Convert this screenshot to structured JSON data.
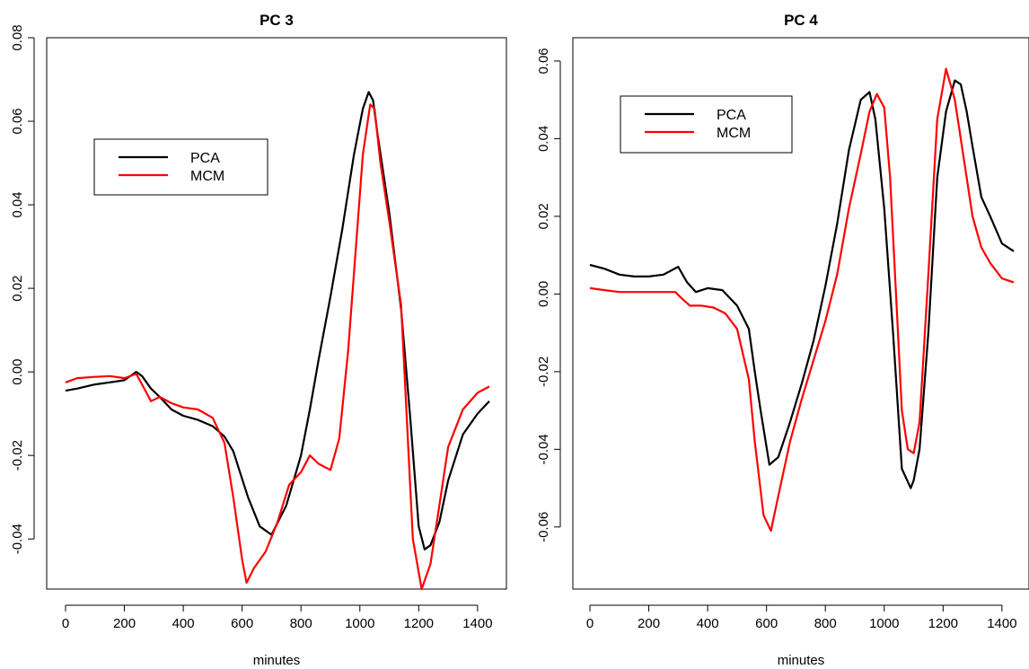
{
  "chart_data": [
    {
      "type": "line",
      "title": "PC 3",
      "xlabel": "minutes",
      "ylabel": "",
      "xlim": [
        0,
        1440
      ],
      "ylim": [
        -0.052,
        0.08
      ],
      "xticks": [
        0,
        200,
        400,
        600,
        800,
        1000,
        1200,
        1400
      ],
      "xtick_labels": [
        "0",
        "200",
        "400",
        "600",
        "800",
        "1000",
        "1200",
        "1400"
      ],
      "yticks": [
        -0.04,
        -0.02,
        0.0,
        0.02,
        0.04,
        0.06,
        0.08
      ],
      "ytick_labels": [
        "-0.04",
        "-0.02",
        "0.00",
        "0.02",
        "0.04",
        "0.06",
        "0.08"
      ],
      "legend": {
        "position": "top-left",
        "entries": [
          "PCA",
          "MCM"
        ]
      },
      "grid": false,
      "series": [
        {
          "name": "PCA",
          "color": "#000000",
          "x": [
            0,
            40,
            100,
            150,
            200,
            240,
            260,
            290,
            320,
            360,
            400,
            450,
            500,
            540,
            570,
            620,
            660,
            700,
            750,
            800,
            830,
            860,
            900,
            940,
            980,
            1010,
            1030,
            1045,
            1060,
            1100,
            1140,
            1170,
            1200,
            1220,
            1240,
            1270,
            1300,
            1350,
            1400,
            1440
          ],
          "y": [
            -0.0045,
            -0.004,
            -0.003,
            -0.0025,
            -0.002,
            0.0,
            -0.001,
            -0.004,
            -0.006,
            -0.009,
            -0.0105,
            -0.0115,
            -0.013,
            -0.0155,
            -0.019,
            -0.03,
            -0.037,
            -0.039,
            -0.032,
            -0.02,
            -0.009,
            0.003,
            0.018,
            0.034,
            0.052,
            0.063,
            0.067,
            0.065,
            0.057,
            0.038,
            0.015,
            -0.01,
            -0.037,
            -0.0425,
            -0.0415,
            -0.036,
            -0.026,
            -0.015,
            -0.01,
            -0.007
          ]
        },
        {
          "name": "MCM",
          "color": "#ff0000",
          "x": [
            0,
            40,
            100,
            150,
            200,
            240,
            260,
            290,
            320,
            360,
            400,
            450,
            500,
            540,
            570,
            600,
            615,
            640,
            680,
            720,
            760,
            800,
            830,
            860,
            900,
            930,
            960,
            990,
            1010,
            1035,
            1050,
            1070,
            1100,
            1140,
            1180,
            1210,
            1240,
            1270,
            1300,
            1350,
            1400,
            1440
          ],
          "y": [
            -0.0025,
            -0.0015,
            -0.0012,
            -0.001,
            -0.0015,
            -0.0005,
            -0.003,
            -0.007,
            -0.006,
            -0.0075,
            -0.0085,
            -0.009,
            -0.011,
            -0.017,
            -0.03,
            -0.045,
            -0.0505,
            -0.047,
            -0.043,
            -0.036,
            -0.027,
            -0.024,
            -0.02,
            -0.022,
            -0.0235,
            -0.016,
            0.005,
            0.033,
            0.052,
            0.064,
            0.063,
            0.05,
            0.036,
            0.016,
            -0.04,
            -0.052,
            -0.046,
            -0.032,
            -0.018,
            -0.009,
            -0.005,
            -0.0035
          ]
        }
      ]
    },
    {
      "type": "line",
      "title": "PC 4",
      "xlabel": "minutes",
      "ylabel": "",
      "xlim": [
        0,
        1440
      ],
      "ylim": [
        -0.076,
        0.066
      ],
      "xticks": [
        0,
        200,
        400,
        600,
        800,
        1000,
        1200,
        1400
      ],
      "xtick_labels": [
        "0",
        "200",
        "400",
        "600",
        "800",
        "1000",
        "1200",
        "1400"
      ],
      "yticks": [
        -0.06,
        -0.04,
        -0.02,
        0.0,
        0.02,
        0.04,
        0.06
      ],
      "ytick_labels": [
        "-0.06",
        "-0.04",
        "-0.02",
        "0.00",
        "0.02",
        "0.04",
        "0.06"
      ],
      "legend": {
        "position": "top-left",
        "entries": [
          "PCA",
          "MCM"
        ]
      },
      "grid": false,
      "series": [
        {
          "name": "PCA",
          "color": "#000000",
          "x": [
            0,
            50,
            100,
            150,
            200,
            250,
            300,
            330,
            360,
            400,
            450,
            500,
            540,
            560,
            580,
            610,
            640,
            680,
            720,
            760,
            800,
            840,
            880,
            920,
            950,
            970,
            1000,
            1030,
            1060,
            1090,
            1100,
            1120,
            1150,
            1180,
            1210,
            1240,
            1260,
            1280,
            1300,
            1330,
            1360,
            1400,
            1440
          ],
          "y": [
            0.0075,
            0.0065,
            0.005,
            0.0045,
            0.0045,
            0.005,
            0.007,
            0.003,
            0.0005,
            0.0015,
            0.001,
            -0.003,
            -0.009,
            -0.02,
            -0.03,
            -0.044,
            -0.042,
            -0.033,
            -0.023,
            -0.012,
            0.002,
            0.018,
            0.037,
            0.05,
            0.052,
            0.045,
            0.022,
            -0.01,
            -0.045,
            -0.05,
            -0.048,
            -0.04,
            -0.01,
            0.03,
            0.047,
            0.055,
            0.054,
            0.047,
            0.038,
            0.025,
            0.02,
            0.013,
            0.011
          ]
        },
        {
          "name": "MCM",
          "color": "#ff0000",
          "x": [
            0,
            50,
            100,
            150,
            200,
            250,
            290,
            310,
            340,
            380,
            420,
            460,
            500,
            540,
            560,
            590,
            615,
            640,
            680,
            720,
            760,
            800,
            840,
            880,
            920,
            950,
            975,
            1000,
            1020,
            1040,
            1060,
            1080,
            1100,
            1120,
            1150,
            1180,
            1210,
            1240,
            1270,
            1300,
            1330,
            1360,
            1400,
            1440
          ],
          "y": [
            0.0015,
            0.001,
            0.0005,
            0.0005,
            0.0005,
            0.0005,
            0.0005,
            -0.001,
            -0.003,
            -0.003,
            -0.0035,
            -0.005,
            -0.009,
            -0.022,
            -0.038,
            -0.057,
            -0.061,
            -0.052,
            -0.038,
            -0.027,
            -0.017,
            -0.007,
            0.005,
            0.022,
            0.036,
            0.047,
            0.0515,
            0.048,
            0.03,
            0.0,
            -0.03,
            -0.04,
            -0.041,
            -0.033,
            0.005,
            0.045,
            0.058,
            0.05,
            0.035,
            0.02,
            0.012,
            0.008,
            0.004,
            0.003
          ]
        }
      ]
    }
  ]
}
